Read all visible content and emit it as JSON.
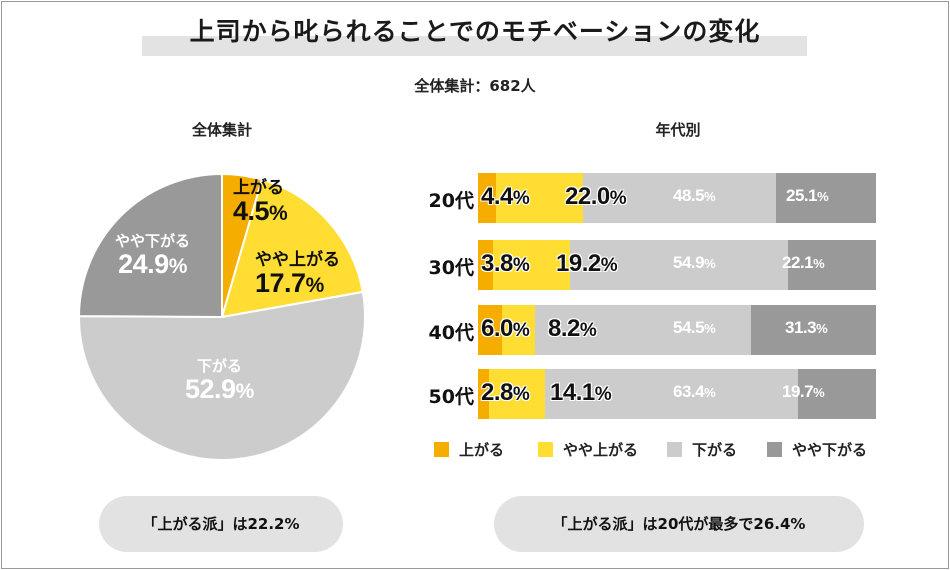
{
  "colors": {
    "up": "#F5AE00",
    "slightly_up": "#FFDD33",
    "down": "#CCCCCC",
    "slightly_down": "#999999",
    "pill": "#E2E2E2"
  },
  "header": {
    "title": "上司から叱られることでのモチベーションの変化",
    "subtitle": "全体集計：682人"
  },
  "chart_data": [
    {
      "type": "pie",
      "title": "全体集計",
      "slices": [
        {
          "label": "上がる",
          "value": 4.5,
          "display": "4.5",
          "unit": "%"
        },
        {
          "label": "やや上がる",
          "value": 17.7,
          "display": "17.7",
          "unit": "%"
        },
        {
          "label": "下がる",
          "value": 52.9,
          "display": "52.9",
          "unit": "%"
        },
        {
          "label": "やや下がる",
          "value": 24.9,
          "display": "24.9",
          "unit": "%"
        }
      ]
    },
    {
      "type": "bar",
      "orientation": "horizontal",
      "stacked": true,
      "title": "年代別",
      "categories": [
        "20代",
        "30代",
        "40代",
        "50代"
      ],
      "series": [
        {
          "name": "上がる",
          "values": [
            4.4,
            3.8,
            6.0,
            2.8
          ],
          "display": [
            "4.4",
            "3.8",
            "6.0",
            "2.8"
          ]
        },
        {
          "name": "やや上がる",
          "values": [
            22.0,
            19.2,
            8.2,
            14.1
          ],
          "display": [
            "22.0",
            "19.2",
            "8.2",
            "14.1"
          ]
        },
        {
          "name": "下がる",
          "values": [
            48.5,
            54.9,
            54.5,
            63.4
          ],
          "display": [
            "48.5",
            "54.9",
            "54.5",
            "63.4"
          ]
        },
        {
          "name": "やや下がる",
          "values": [
            25.1,
            22.1,
            31.3,
            19.7
          ],
          "display": [
            "25.1",
            "22.1",
            "31.3",
            "19.7"
          ]
        }
      ],
      "unit": "%",
      "xlim": [
        0,
        100
      ]
    }
  ],
  "legend": [
    "上がる",
    "やや上がる",
    "下がる",
    "やや下がる"
  ],
  "callouts": {
    "left": "「上がる派」は22.2%",
    "right": "「上がる派」は20代が最多で26.4%"
  }
}
